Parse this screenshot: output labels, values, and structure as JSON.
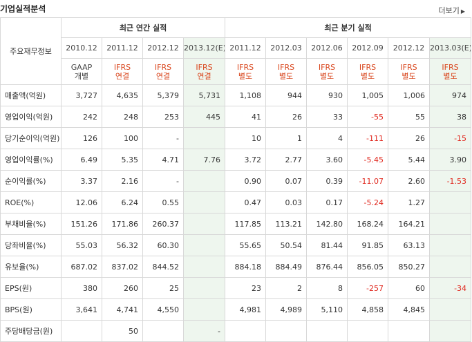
{
  "page": {
    "title": "기업실적분석",
    "more_label": "더보기"
  },
  "table": {
    "corner_label": "주요재무정보",
    "annual_group": "최근 연간 실적",
    "quarter_group": "최근 분기 실적",
    "annual_periods": [
      "2010.12",
      "2011.12",
      "2012.12",
      "2013.12(E)"
    ],
    "quarter_periods": [
      "2011.12",
      "2012.03",
      "2012.06",
      "2012.09",
      "2012.12",
      "2013.03(E)"
    ],
    "annual_std": [
      {
        "l1": "GAAP",
        "l2": "개별"
      },
      {
        "l1": "IFRS",
        "l2": "연결"
      },
      {
        "l1": "IFRS",
        "l2": "연결"
      },
      {
        "l1": "IFRS",
        "l2": "연결"
      }
    ],
    "quarter_std": [
      {
        "l1": "IFRS",
        "l2": "별도"
      },
      {
        "l1": "IFRS",
        "l2": "별도"
      },
      {
        "l1": "IFRS",
        "l2": "별도"
      },
      {
        "l1": "IFRS",
        "l2": "별도"
      },
      {
        "l1": "IFRS",
        "l2": "별도"
      },
      {
        "l1": "IFRS",
        "l2": "별도"
      }
    ],
    "rows": [
      {
        "label": "매출액(억원)",
        "values": [
          "3,727",
          "4,635",
          "5,379",
          "5,731",
          "1,108",
          "944",
          "930",
          "1,005",
          "1,006",
          "974"
        ]
      },
      {
        "label": "영업이익(억원)",
        "values": [
          "242",
          "248",
          "253",
          "445",
          "41",
          "26",
          "33",
          "-55",
          "55",
          "38"
        ]
      },
      {
        "label": "당기순이익(억원)",
        "values": [
          "126",
          "100",
          "-",
          "",
          "10",
          "1",
          "4",
          "-111",
          "26",
          "-15"
        ]
      },
      {
        "label": "영업이익률(%)",
        "values": [
          "6.49",
          "5.35",
          "4.71",
          "7.76",
          "3.72",
          "2.77",
          "3.60",
          "-5.45",
          "5.44",
          "3.90"
        ]
      },
      {
        "label": "순이익률(%)",
        "values": [
          "3.37",
          "2.16",
          "-",
          "",
          "0.90",
          "0.07",
          "0.39",
          "-11.07",
          "2.60",
          "-1.53"
        ]
      },
      {
        "label": "ROE(%)",
        "values": [
          "12.06",
          "6.24",
          "0.55",
          "",
          "0.47",
          "0.03",
          "0.17",
          "-5.24",
          "1.27",
          ""
        ]
      },
      {
        "label": "부채비율(%)",
        "values": [
          "151.26",
          "171.86",
          "260.37",
          "",
          "117.85",
          "113.21",
          "142.80",
          "168.24",
          "164.21",
          ""
        ]
      },
      {
        "label": "당좌비율(%)",
        "values": [
          "55.03",
          "56.32",
          "60.30",
          "",
          "55.65",
          "50.54",
          "81.44",
          "91.85",
          "63.13",
          ""
        ]
      },
      {
        "label": "유보율(%)",
        "values": [
          "687.02",
          "837.02",
          "844.52",
          "",
          "884.18",
          "884.49",
          "876.44",
          "856.05",
          "850.27",
          ""
        ]
      },
      {
        "label": "EPS(원)",
        "values": [
          "380",
          "260",
          "25",
          "",
          "23",
          "2",
          "8",
          "-257",
          "60",
          "-34"
        ]
      },
      {
        "label": "BPS(원)",
        "values": [
          "3,641",
          "4,741",
          "4,550",
          "",
          "4,981",
          "4,989",
          "5,110",
          "4,858",
          "4,845",
          ""
        ]
      },
      {
        "label": "주당배당금(원)",
        "values": [
          "",
          "50",
          "",
          "-",
          "",
          "",
          "",
          "",
          "",
          ""
        ]
      }
    ]
  }
}
